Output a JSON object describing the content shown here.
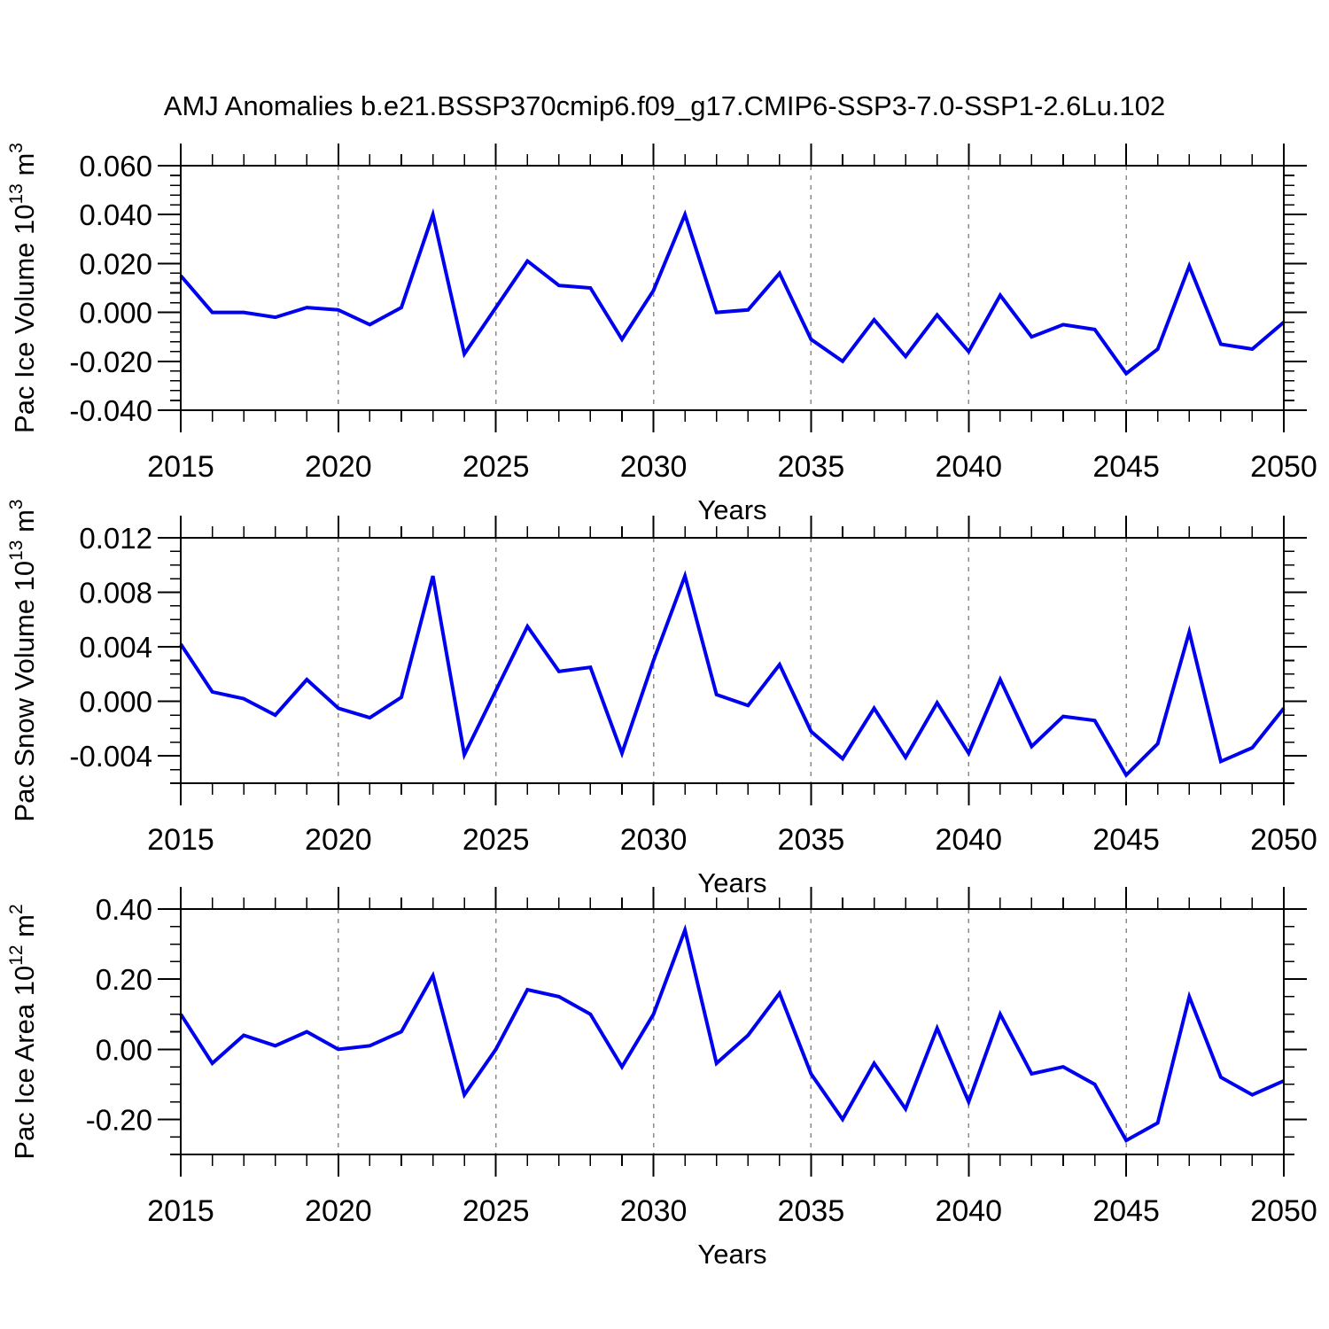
{
  "title": "AMJ Anomalies b.e21.BSSP370cmip6.f09_g17.CMIP6-SSP3-7.0-SSP1-2.6Lu.102",
  "colors": {
    "line": "#0000f0",
    "grid": "#8c8c8c",
    "axis": "#000000",
    "text": "#000000",
    "background": "#ffffff"
  },
  "chart_data": [
    {
      "type": "line",
      "xlabel": "Years",
      "ylabel": {
        "pre": "Pac Ice Volume 10",
        "sup1": "13",
        "mid": " m",
        "sup2": "3"
      },
      "xlim": [
        2015,
        2050
      ],
      "ylim": [
        -0.04,
        0.06
      ],
      "grid_years": [
        2020,
        2025,
        2030,
        2035,
        2040,
        2045
      ],
      "xtick_values": [
        2015,
        2020,
        2025,
        2030,
        2035,
        2040,
        2045,
        2050
      ],
      "xtick_labels": [
        "2015",
        "2020",
        "2025",
        "2030",
        "2035",
        "2040",
        "2045",
        "2050"
      ],
      "xminor_step": 1,
      "ytick_values": [
        0.06,
        0.04,
        0.02,
        0.0,
        -0.02,
        -0.04
      ],
      "ytick_labels": [
        "0.060",
        "0.040",
        "0.020",
        "0.000",
        "-0.020",
        "-0.040"
      ],
      "yminor_step": 0.004,
      "x": [
        2015,
        2016,
        2017,
        2018,
        2019,
        2020,
        2021,
        2022,
        2023,
        2024,
        2025,
        2026,
        2027,
        2028,
        2029,
        2030,
        2031,
        2032,
        2033,
        2034,
        2035,
        2036,
        2037,
        2038,
        2039,
        2040,
        2041,
        2042,
        2043,
        2044,
        2045,
        2046,
        2047,
        2048,
        2049,
        2050
      ],
      "values": [
        0.015,
        0.0,
        0.0,
        -0.002,
        0.002,
        0.001,
        -0.005,
        0.002,
        0.04,
        -0.017,
        0.002,
        0.021,
        0.011,
        0.01,
        -0.011,
        0.009,
        0.04,
        0.0,
        0.001,
        0.016,
        -0.011,
        -0.02,
        -0.003,
        -0.018,
        -0.001,
        -0.016,
        0.007,
        -0.01,
        -0.005,
        -0.007,
        -0.025,
        -0.015,
        0.019,
        -0.013,
        -0.015,
        -0.004
      ]
    },
    {
      "type": "line",
      "xlabel": "Years",
      "ylabel": {
        "pre": "Pac Snow Volume 10",
        "sup1": "13",
        "mid": " m",
        "sup2": "3"
      },
      "xlim": [
        2015,
        2050
      ],
      "ylim": [
        -0.006,
        0.012
      ],
      "grid_years": [
        2020,
        2025,
        2030,
        2035,
        2040,
        2045
      ],
      "xtick_values": [
        2015,
        2020,
        2025,
        2030,
        2035,
        2040,
        2045,
        2050
      ],
      "xtick_labels": [
        "2015",
        "2020",
        "2025",
        "2030",
        "2035",
        "2040",
        "2045",
        "2050"
      ],
      "xminor_step": 1,
      "ytick_values": [
        0.012,
        0.008,
        0.004,
        0.0,
        -0.004
      ],
      "ytick_labels": [
        "0.012",
        "0.008",
        "0.004",
        "0.000",
        "-0.004"
      ],
      "yminor_step": 0.001,
      "x": [
        2015,
        2016,
        2017,
        2018,
        2019,
        2020,
        2021,
        2022,
        2023,
        2024,
        2025,
        2026,
        2027,
        2028,
        2029,
        2030,
        2031,
        2032,
        2033,
        2034,
        2035,
        2036,
        2037,
        2038,
        2039,
        2040,
        2041,
        2042,
        2043,
        2044,
        2045,
        2046,
        2047,
        2048,
        2049,
        2050
      ],
      "values": [
        0.0042,
        0.0007,
        0.0002,
        -0.001,
        0.0016,
        -0.0005,
        -0.0012,
        0.0003,
        0.0092,
        -0.0039,
        0.0008,
        0.0055,
        0.0022,
        0.0025,
        -0.0038,
        0.003,
        0.0092,
        0.0005,
        -0.0003,
        0.0027,
        -0.0022,
        -0.0042,
        -0.0005,
        -0.0041,
        -0.0001,
        -0.0038,
        0.0016,
        -0.0033,
        -0.0011,
        -0.0014,
        -0.0054,
        -0.0031,
        0.0051,
        -0.0044,
        -0.0034,
        -0.0005
      ]
    },
    {
      "type": "line",
      "xlabel": "Years",
      "ylabel": {
        "pre": "Pac Ice Area 10",
        "sup1": "12",
        "mid": " m",
        "sup2": "2"
      },
      "xlim": [
        2015,
        2050
      ],
      "ylim": [
        -0.3,
        0.4
      ],
      "grid_years": [
        2020,
        2025,
        2030,
        2035,
        2040,
        2045
      ],
      "xtick_values": [
        2015,
        2020,
        2025,
        2030,
        2035,
        2040,
        2045,
        2050
      ],
      "xtick_labels": [
        "2015",
        "2020",
        "2025",
        "2030",
        "2035",
        "2040",
        "2045",
        "2050"
      ],
      "xminor_step": 1,
      "ytick_values": [
        0.4,
        0.2,
        0.0,
        -0.2
      ],
      "ytick_labels": [
        "0.40",
        "0.20",
        "0.00",
        "-0.20"
      ],
      "yminor_step": 0.05,
      "x": [
        2015,
        2016,
        2017,
        2018,
        2019,
        2020,
        2021,
        2022,
        2023,
        2024,
        2025,
        2026,
        2027,
        2028,
        2029,
        2030,
        2031,
        2032,
        2033,
        2034,
        2035,
        2036,
        2037,
        2038,
        2039,
        2040,
        2041,
        2042,
        2043,
        2044,
        2045,
        2046,
        2047,
        2048,
        2049,
        2050
      ],
      "values": [
        0.1,
        -0.04,
        0.04,
        0.01,
        0.05,
        0.0,
        0.01,
        0.05,
        0.21,
        -0.13,
        0.0,
        0.17,
        0.15,
        0.1,
        -0.05,
        0.1,
        0.34,
        -0.04,
        0.04,
        0.16,
        -0.07,
        -0.2,
        -0.04,
        -0.17,
        0.06,
        -0.15,
        0.1,
        -0.07,
        -0.05,
        -0.1,
        -0.26,
        -0.21,
        0.15,
        -0.08,
        -0.13,
        -0.09
      ]
    }
  ]
}
